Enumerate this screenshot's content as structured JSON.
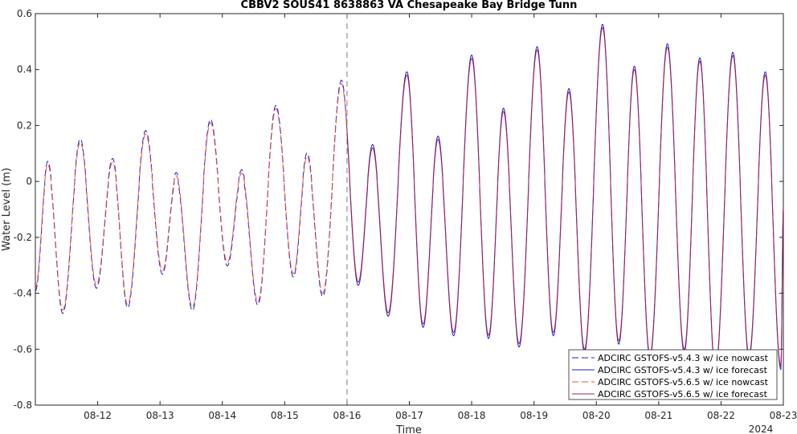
{
  "chart_data": {
    "type": "line",
    "title": "CBBV2 SOUS41 8638863 VA Chesapeake Bay Bridge Tunn",
    "xlabel": "Time",
    "ylabel": "Water Level (m)",
    "x_year_label": "2024",
    "x_tick_labels": [
      "08-12",
      "08-13",
      "08-14",
      "08-15",
      "08-16",
      "08-17",
      "08-18",
      "08-19",
      "08-20",
      "08-21",
      "08-22",
      "08-23"
    ],
    "x_ticks_day": [
      12,
      13,
      14,
      15,
      16,
      17,
      18,
      19,
      20,
      21,
      22,
      23
    ],
    "xlim_day": [
      11.0,
      23.0
    ],
    "ylim": [
      -0.8,
      0.6
    ],
    "y_ticks": [
      -0.8,
      -0.6,
      -0.4,
      -0.2,
      0,
      0.2,
      0.4,
      0.6
    ],
    "y_tick_labels": [
      "-0.8",
      "-0.6",
      "-0.4",
      "-0.2",
      "0",
      "0.2",
      "0.4",
      "0.6"
    ],
    "grid": false,
    "legend_position": "bottom-right",
    "nowcast_forecast_divider_day": 16.0,
    "extrema": [
      [
        11.0,
        -0.38
      ],
      [
        11.2,
        0.06
      ],
      [
        11.44,
        -0.46
      ],
      [
        11.72,
        0.14
      ],
      [
        11.98,
        -0.37
      ],
      [
        12.24,
        0.07
      ],
      [
        12.48,
        -0.44
      ],
      [
        12.77,
        0.17
      ],
      [
        13.04,
        -0.32
      ],
      [
        13.26,
        0.02
      ],
      [
        13.52,
        -0.45
      ],
      [
        13.81,
        0.21
      ],
      [
        14.08,
        -0.29
      ],
      [
        14.31,
        0.03
      ],
      [
        14.57,
        -0.43
      ],
      [
        14.86,
        0.26
      ],
      [
        15.14,
        -0.33
      ],
      [
        15.36,
        0.09
      ],
      [
        15.61,
        -0.4
      ],
      [
        15.91,
        0.35
      ],
      [
        16.18,
        -0.36
      ],
      [
        16.41,
        0.12
      ],
      [
        16.66,
        -0.47
      ],
      [
        16.96,
        0.38
      ],
      [
        17.22,
        -0.51
      ],
      [
        17.46,
        0.15
      ],
      [
        17.71,
        -0.54
      ],
      [
        18.0,
        0.44
      ],
      [
        18.27,
        -0.55
      ],
      [
        18.51,
        0.25
      ],
      [
        18.76,
        -0.58
      ],
      [
        19.05,
        0.47
      ],
      [
        19.31,
        -0.54
      ],
      [
        19.56,
        0.32
      ],
      [
        19.81,
        -0.6
      ],
      [
        20.1,
        0.55
      ],
      [
        20.36,
        -0.57
      ],
      [
        20.61,
        0.4
      ],
      [
        20.86,
        -0.62
      ],
      [
        21.14,
        0.48
      ],
      [
        21.41,
        -0.6
      ],
      [
        21.66,
        0.43
      ],
      [
        21.91,
        -0.67
      ],
      [
        22.19,
        0.45
      ],
      [
        22.45,
        -0.62
      ],
      [
        22.71,
        0.38
      ],
      [
        22.96,
        -0.66
      ],
      [
        23.0,
        -0.09
      ]
    ],
    "series": [
      {
        "name": "ADCIRC GSTOFS-v5.4.3 w/ ice nowcast",
        "color": "#1f1fd1",
        "style": "dashed",
        "range_day": [
          11.0,
          16.0
        ],
        "offset": 0.012
      },
      {
        "name": "ADCIRC GSTOFS-v5.4.3 w/ ice forecast",
        "color": "#1f1fd1",
        "style": "solid",
        "range_day": [
          16.0,
          23.0
        ],
        "offset": 0.012
      },
      {
        "name": "ADCIRC GSTOFS-v5.6.5 w/ ice nowcast",
        "color": "#e8553a",
        "style": "dashed",
        "range_day": [
          11.0,
          16.0
        ],
        "offset": 0.0
      },
      {
        "name": "ADCIRC GSTOFS-v5.6.5 w/ ice forecast",
        "color": "#a3234f",
        "style": "solid",
        "range_day": [
          16.0,
          23.0
        ],
        "offset": 0.0
      }
    ]
  }
}
